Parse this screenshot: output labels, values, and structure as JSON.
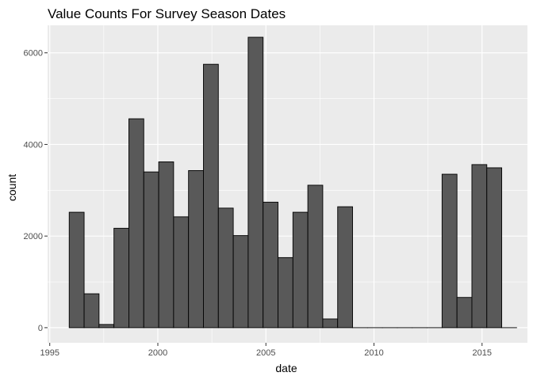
{
  "chart_data": {
    "type": "bar",
    "title": "Value Counts For Survey Season Dates",
    "xlabel": "date",
    "ylabel": "count",
    "xlim": [
      1994.9,
      2017.1
    ],
    "ylim": [
      -330,
      6600
    ],
    "x_ticks": [
      1995,
      2000,
      2005,
      2010,
      2015
    ],
    "y_ticks": [
      0,
      2000,
      4000,
      6000
    ],
    "x_tick_labels": [
      "1995",
      "2000",
      "2005",
      "2010",
      "2015"
    ],
    "y_tick_labels": [
      "0",
      "2000",
      "4000",
      "6000"
    ],
    "bin_width": 0.69,
    "bins": [
      {
        "start": 1995.9,
        "end": 1996.59,
        "count": 2520
      },
      {
        "start": 1996.59,
        "end": 1997.28,
        "count": 740
      },
      {
        "start": 1997.28,
        "end": 1997.97,
        "count": 70
      },
      {
        "start": 1997.97,
        "end": 1998.66,
        "count": 2170
      },
      {
        "start": 1998.66,
        "end": 1999.35,
        "count": 4560
      },
      {
        "start": 1999.35,
        "end": 2000.04,
        "count": 3400
      },
      {
        "start": 2000.04,
        "end": 2000.73,
        "count": 3620
      },
      {
        "start": 2000.73,
        "end": 2001.42,
        "count": 2420
      },
      {
        "start": 2001.42,
        "end": 2002.11,
        "count": 3430
      },
      {
        "start": 2002.11,
        "end": 2002.8,
        "count": 5750
      },
      {
        "start": 2002.8,
        "end": 2003.49,
        "count": 2610
      },
      {
        "start": 2003.49,
        "end": 2004.18,
        "count": 2010
      },
      {
        "start": 2004.18,
        "end": 2004.87,
        "count": 6340
      },
      {
        "start": 2004.87,
        "end": 2005.56,
        "count": 2740
      },
      {
        "start": 2005.56,
        "end": 2006.25,
        "count": 1530
      },
      {
        "start": 2006.25,
        "end": 2006.94,
        "count": 2520
      },
      {
        "start": 2006.94,
        "end": 2007.63,
        "count": 3110
      },
      {
        "start": 2007.63,
        "end": 2008.32,
        "count": 190
      },
      {
        "start": 2008.32,
        "end": 2009.01,
        "count": 2640
      },
      {
        "start": 2009.01,
        "end": 2009.7,
        "count": 0
      },
      {
        "start": 2009.7,
        "end": 2010.39,
        "count": 0
      },
      {
        "start": 2010.39,
        "end": 2011.08,
        "count": 0
      },
      {
        "start": 2011.08,
        "end": 2011.77,
        "count": 0
      },
      {
        "start": 2011.77,
        "end": 2012.46,
        "count": 0
      },
      {
        "start": 2012.46,
        "end": 2013.15,
        "count": 0
      },
      {
        "start": 2013.15,
        "end": 2013.84,
        "count": 3350
      },
      {
        "start": 2013.84,
        "end": 2014.53,
        "count": 660
      },
      {
        "start": 2014.53,
        "end": 2015.22,
        "count": 3560
      },
      {
        "start": 2015.22,
        "end": 2015.91,
        "count": 3490
      },
      {
        "start": 2015.91,
        "end": 2016.6,
        "count": 0
      }
    ],
    "grid": true,
    "background_color": "#ebebeb",
    "grid_major_color": "#ffffff",
    "bar_fill": "#595959",
    "bar_stroke": "#000000"
  }
}
